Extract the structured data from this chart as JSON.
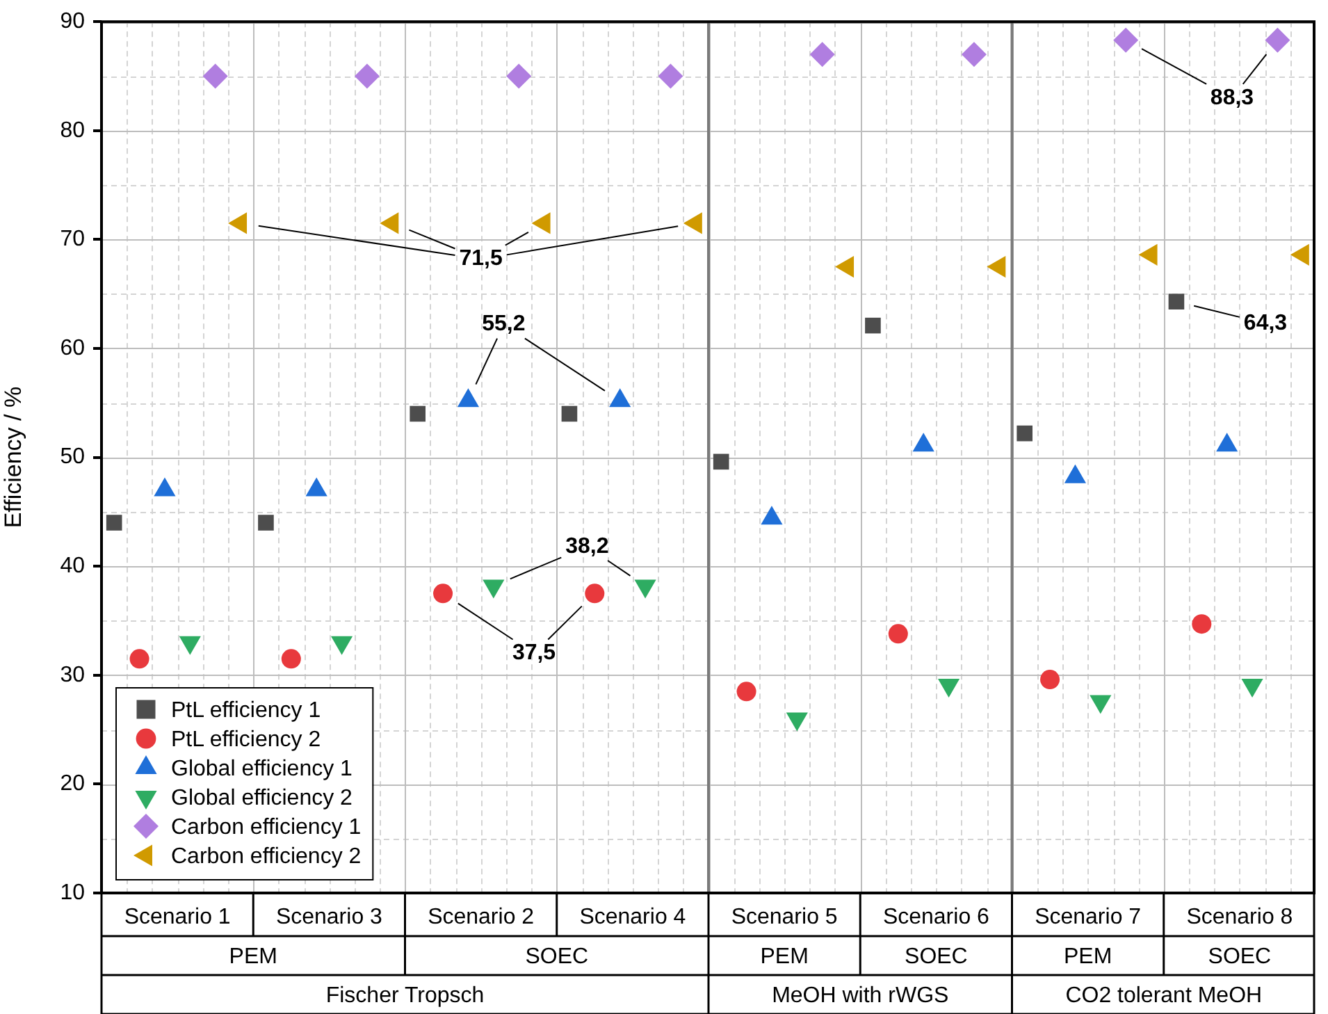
{
  "chart_data": {
    "type": "scatter",
    "ylabel": "Efficiency / %",
    "categories": [
      "Scenario 1",
      "Scenario 3",
      "Scenario 2",
      "Scenario 4",
      "Scenario 5",
      "Scenario 6",
      "Scenario 7",
      "Scenario 8"
    ],
    "series": [
      {
        "name": "PtL efficiency 1",
        "color": "#4d4d4d",
        "marker": "square",
        "values": [
          44,
          44,
          54,
          54,
          49.6,
          62.1,
          52.2,
          64.3
        ]
      },
      {
        "name": "PtL efficiency 2",
        "color": "#e8393d",
        "marker": "circle",
        "values": [
          31.5,
          31.5,
          37.5,
          37.5,
          28.5,
          33.8,
          29.6,
          34.7
        ]
      },
      {
        "name": "Global efficiency 1",
        "color": "#1f6fd8",
        "marker": "triangle",
        "values": [
          47,
          47,
          55.2,
          55.2,
          44.4,
          51.1,
          48.2,
          51.1
        ]
      },
      {
        "name": "Global efficiency 2",
        "color": "#2eac62",
        "marker": "triangle-down",
        "values": [
          33,
          33,
          38.2,
          38.2,
          26,
          29.1,
          27.6,
          29.1
        ]
      },
      {
        "name": "Carbon efficiency 1",
        "color": "#b07ee0",
        "marker": "diamond",
        "values": [
          85,
          85,
          85,
          85,
          87,
          87,
          88.3,
          88.3
        ]
      },
      {
        "name": "Carbon efficiency 2",
        "color": "#d09a00",
        "marker": "triangle-left",
        "values": [
          71.5,
          71.5,
          71.5,
          71.5,
          67.5,
          67.5,
          68.6,
          68.6
        ]
      }
    ],
    "ylim": [
      10,
      90
    ],
    "yticks": [
      10,
      20,
      30,
      40,
      50,
      60,
      70,
      80,
      90
    ],
    "grid": true,
    "legend": "bottom left",
    "annotations": [
      "71,5",
      "55,2",
      "38,2",
      "37,5",
      "88,3",
      "64,3",
      "PEM",
      "SOEC",
      "PEM",
      "SOEC",
      "PEM",
      "SOEC",
      "Fischer Tropsch",
      "MeOH with rWGS",
      "CO2 tolerant MeOH"
    ]
  }
}
